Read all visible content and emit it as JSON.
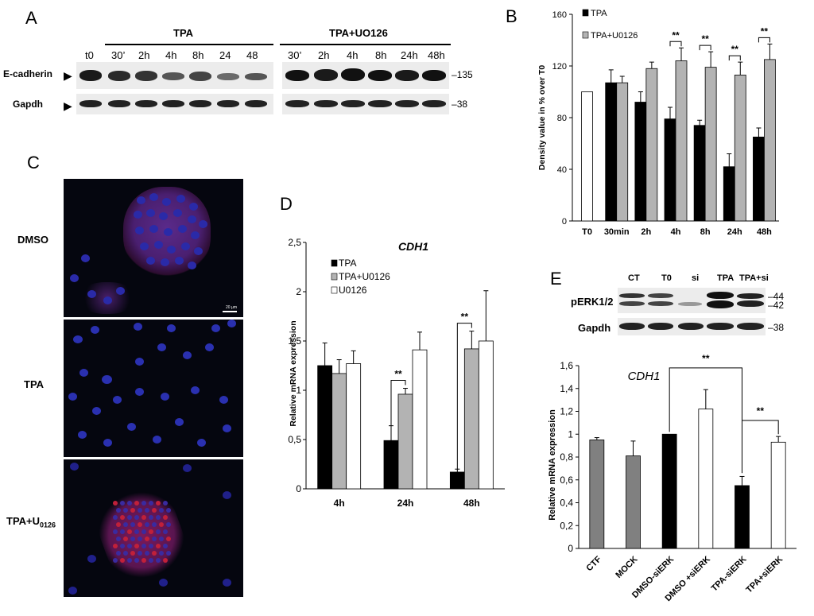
{
  "panels": {
    "a": "A",
    "b": "B",
    "c": "C",
    "d": "D",
    "e": "E"
  },
  "panel_a": {
    "group_tpa": "TPA",
    "group_tpa_uo": "TPA+UO126",
    "lanes_left": [
      "t0",
      "30’",
      "2h",
      "4h",
      "8h",
      "24",
      "48"
    ],
    "lanes_right": [
      "30’",
      "2h",
      "4h",
      "8h",
      "24h",
      "48h"
    ],
    "row1": "E-cadherin",
    "row2": "Gapdh",
    "mw1": "135",
    "mw2": "38"
  },
  "panel_c": {
    "rows": [
      "DMSO",
      "TPA",
      "TPA+U"
    ],
    "sub": "0126",
    "scale": "20 µm"
  },
  "panel_e_blot": {
    "lanes": [
      "CT",
      "T0",
      "si",
      "TPA",
      "TPA+si"
    ],
    "row1": "pERK1/2",
    "row2": "Gapdh",
    "mw": [
      "44",
      "42",
      "38"
    ]
  },
  "chart_data": [
    {
      "id": "B",
      "type": "bar",
      "ylabel": "Density value in % over T0",
      "ylim": [
        0,
        160
      ],
      "yticks": [
        "0",
        "40",
        "80",
        "120",
        "160"
      ],
      "categories": [
        "T0",
        "30min",
        "2h",
        "4h",
        "8h",
        "24h",
        "48h"
      ],
      "series": [
        {
          "name": "",
          "color": "#ffffff",
          "values": [
            100,
            null,
            null,
            null,
            null,
            null,
            null
          ],
          "errors": [
            0,
            0,
            0,
            0,
            0,
            0,
            0
          ]
        },
        {
          "name": "TPA",
          "color": "#000000",
          "values": [
            null,
            107,
            92,
            79,
            74,
            42,
            65
          ],
          "errors": [
            0,
            10,
            8,
            9,
            4,
            10,
            7
          ]
        },
        {
          "name": "TPA+U0126",
          "color": "#b3b3b3",
          "values": [
            null,
            107,
            118,
            124,
            119,
            113,
            125
          ],
          "errors": [
            0,
            5,
            5,
            10,
            12,
            10,
            12
          ]
        }
      ],
      "annotations": [
        {
          "category": "4h",
          "text": "**"
        },
        {
          "category": "8h",
          "text": "**"
        },
        {
          "category": "24h",
          "text": "**"
        },
        {
          "category": "48h",
          "text": "**"
        }
      ]
    },
    {
      "id": "D",
      "type": "bar",
      "title": "CDH1",
      "ylabel": "Relative mRNA expression",
      "ylim": [
        0,
        2.5
      ],
      "yticks": [
        "0",
        "0,5",
        "1",
        "1,5",
        "2",
        "2,5"
      ],
      "categories": [
        "4h",
        "24h",
        "48h"
      ],
      "series": [
        {
          "name": "TPA",
          "color": "#000000",
          "values": [
            1.25,
            0.49,
            0.17
          ],
          "errors": [
            0.23,
            0.15,
            0.03
          ]
        },
        {
          "name": "TPA+U0126",
          "color": "#b3b3b3",
          "values": [
            1.17,
            0.96,
            1.42
          ],
          "errors": [
            0.14,
            0.06,
            0.18
          ]
        },
        {
          "name": "U0126",
          "color": "#ffffff",
          "values": [
            1.27,
            1.41,
            1.5
          ],
          "errors": [
            0.13,
            0.18,
            0.51
          ]
        }
      ],
      "annotations": [
        {
          "category": "24h",
          "text": "**"
        },
        {
          "category": "48h",
          "text": "**"
        }
      ]
    },
    {
      "id": "E",
      "type": "bar",
      "title": "CDH1",
      "ylabel": "Relative mRNA expression",
      "ylim": [
        0,
        1.6
      ],
      "yticks": [
        "0",
        "0,2",
        "0,4",
        "0,6",
        "0,8",
        "1",
        "1,2",
        "1,4",
        "1,6"
      ],
      "categories": [
        "CTF",
        "MOCK",
        "DMSO-siERK",
        "DMSO +siERK",
        "TPA-siERK",
        "TPA+siERK"
      ],
      "values": [
        0.95,
        0.81,
        1.0,
        1.22,
        0.55,
        0.93
      ],
      "errors": [
        0.02,
        0.13,
        0,
        0.17,
        0.08,
        0.05
      ],
      "colors": [
        "#808080",
        "#808080",
        "#000000",
        "#ffffff",
        "#000000",
        "#ffffff"
      ],
      "annotations": [
        {
          "from": "DMSO-siERK",
          "to": "TPA-siERK",
          "text": "**"
        },
        {
          "from": "TPA-siERK",
          "to": "TPA+siERK",
          "text": "**"
        }
      ]
    }
  ]
}
